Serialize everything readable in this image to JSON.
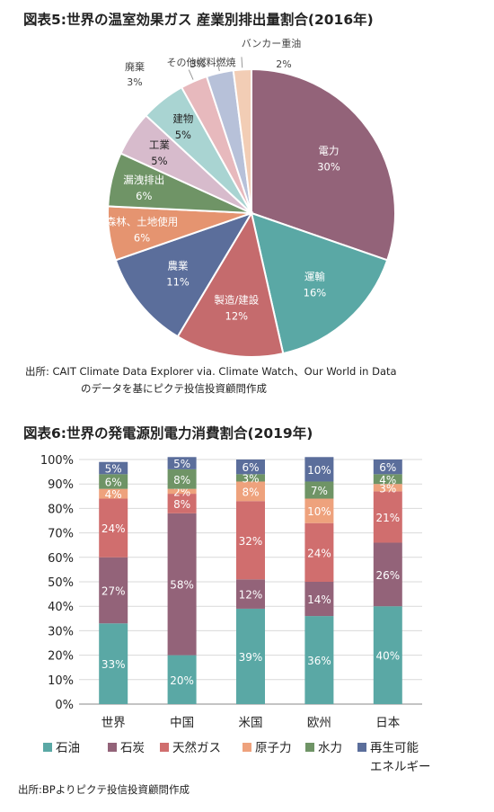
{
  "chart_data": [
    {
      "type": "pie",
      "title": "図表5:世界の温室効果ガス 産業別排出量割合(2016年)",
      "source": [
        "出所: CAIT Climate Data Explorer via. Climate Watch、Our World in Data",
        "のデータを基にピクテ投信投資顧問作成"
      ],
      "slices": [
        {
          "name": "電力",
          "value": 30,
          "label": "30%",
          "color": "#936379"
        },
        {
          "name": "運輸",
          "value": 16,
          "label": "16%",
          "color": "#5aa8a5"
        },
        {
          "name": "製造/建設",
          "value": 12,
          "label": "12%",
          "color": "#c56b6d"
        },
        {
          "name": "農業",
          "value": 11,
          "label": "11%",
          "color": "#5b6e9b"
        },
        {
          "name": "森林、土地使用",
          "value": 6,
          "label": "6%",
          "color": "#e59470"
        },
        {
          "name": "漏洩排出",
          "value": 6,
          "label": "6%",
          "color": "#6f9466"
        },
        {
          "name": "工業",
          "value": 5,
          "label": "5%",
          "color": "#d7bbcc"
        },
        {
          "name": "建物",
          "value": 5,
          "label": "5%",
          "color": "#a9d4d2"
        },
        {
          "name": "廃棄",
          "value": 3,
          "label": "3%",
          "color": "#e7b9bd"
        },
        {
          "name": "その他燃料燃焼",
          "value": 3,
          "label": "3%",
          "color": "#b7c1d9"
        },
        {
          "name": "バンカー重油",
          "value": 2,
          "label": "2%",
          "color": "#f2cdb5"
        }
      ]
    },
    {
      "type": "bar",
      "stacked": true,
      "title": "図表6:世界の発電源別電力消費割合(2019年)",
      "source": "出所:BPよりピクテ投信投資顧問作成",
      "categories": [
        "世界",
        "中国",
        "米国",
        "欧州",
        "日本"
      ],
      "ylim": [
        0,
        100
      ],
      "yticks": [
        "0%",
        "10%",
        "20%",
        "30%",
        "40%",
        "50%",
        "60%",
        "70%",
        "80%",
        "90%",
        "100%"
      ],
      "legend_position": "bottom",
      "series": [
        {
          "name": "石油",
          "color": "#5aa8a5",
          "values": [
            33,
            20,
            39,
            36,
            40
          ],
          "labels": [
            "33%",
            "20%",
            "39%",
            "36%",
            "40%"
          ]
        },
        {
          "name": "石炭",
          "color": "#936379",
          "values": [
            27,
            58,
            12,
            14,
            26
          ],
          "labels": [
            "27%",
            "58%",
            "12%",
            "14%",
            "26%"
          ]
        },
        {
          "name": "天然ガス",
          "color": "#d06e6e",
          "values": [
            24,
            8,
            32,
            24,
            21
          ],
          "labels": [
            "24%",
            "8%",
            "32%",
            "24%",
            "21%"
          ]
        },
        {
          "name": "原子力",
          "color": "#eea27d",
          "values": [
            4,
            2,
            8,
            10,
            3
          ],
          "labels": [
            "4%",
            "2%",
            "8%",
            "10%",
            "3%"
          ]
        },
        {
          "name": "水力",
          "color": "#6f9466",
          "values": [
            6,
            8,
            3,
            7,
            4
          ],
          "labels": [
            "6%",
            "8%",
            "3%",
            "7%",
            "4%"
          ]
        },
        {
          "name": "再生可能エネルギー",
          "display_lines": [
            "再生可能",
            "エネルギー"
          ],
          "color": "#5b6e9b",
          "values": [
            5,
            5,
            6,
            10,
            6
          ],
          "labels": [
            "5%",
            "5%",
            "6%",
            "10%",
            "6%"
          ]
        }
      ]
    }
  ]
}
